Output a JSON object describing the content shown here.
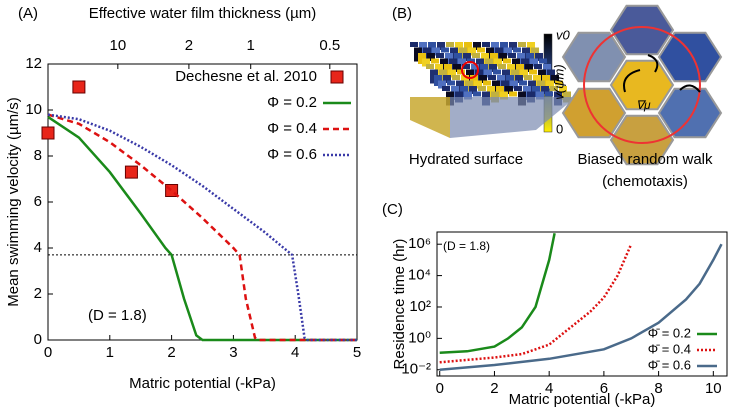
{
  "chart_data": [
    {
      "type": "line",
      "panel_label": "(A)",
      "x_label": "Matric potential (-kPa)",
      "y_label": "Mean swimming velocity (µm/s)",
      "x2_label": "Effective water film thickness (µm)",
      "xlim": [
        0,
        5
      ],
      "ylim": [
        0,
        12
      ],
      "xticks": [
        0,
        1,
        2,
        3,
        4,
        5
      ],
      "yticks": [
        0,
        2,
        4,
        6,
        8,
        10,
        12
      ],
      "x2ticks": [
        {
          "value": 1.13,
          "label": "10"
        },
        {
          "value": 2.28,
          "label": "2"
        },
        {
          "value": 3.28,
          "label": "1"
        },
        {
          "value": 4.56,
          "label": "0.5"
        }
      ],
      "annotation": "(D = 1.8)",
      "reference_line": 3.7,
      "legend": "top-right",
      "series": [
        {
          "name": "Dechesne et al. 2010",
          "type": "scatter",
          "color": "#e8251a",
          "x": [
            0,
            0.5,
            1.35,
            2.0
          ],
          "values": [
            9.0,
            11.0,
            7.3,
            6.5
          ]
        },
        {
          "name": "Φ = 0.2",
          "style": "solid",
          "color": "#1a8a1a",
          "x": [
            0,
            0.5,
            1,
            1.5,
            1.9,
            2.0,
            2.2,
            2.4,
            2.5,
            5
          ],
          "values": [
            9.7,
            8.8,
            7.3,
            5.5,
            4.0,
            3.7,
            1.8,
            0.2,
            0,
            0
          ]
        },
        {
          "name": "Φ = 0.4",
          "style": "dashed",
          "color": "#dd1111",
          "x": [
            0,
            0.5,
            1,
            1.5,
            2,
            2.5,
            3.0,
            3.1,
            3.2,
            3.35,
            3.4,
            5
          ],
          "values": [
            9.8,
            9.4,
            8.6,
            7.6,
            6.5,
            5.3,
            4.0,
            3.7,
            1.8,
            0.1,
            0,
            0
          ]
        },
        {
          "name": "Φ = 0.6",
          "style": "dotted",
          "color": "#3a3aa8",
          "x": [
            0,
            0.5,
            1,
            1.5,
            2,
            2.5,
            3,
            3.5,
            3.95,
            4.05,
            4.15,
            4.2,
            5
          ],
          "values": [
            9.8,
            9.6,
            9.1,
            8.4,
            7.6,
            6.7,
            5.7,
            4.7,
            3.7,
            2.0,
            0.1,
            0,
            0
          ]
        }
      ]
    },
    {
      "type": "line",
      "panel_label": "(C)",
      "log_y": true,
      "x_label": "Matric potential (-kPa)",
      "y_label": "Residence time (hr)",
      "xlim": [
        -0.1,
        10.5
      ],
      "ylim": [
        0.004,
        6000000
      ],
      "xticks": [
        0,
        2,
        4,
        6,
        8,
        10
      ],
      "yticks": [
        {
          "value": 0.01,
          "label": "10⁻²"
        },
        {
          "value": 1,
          "label": "10⁰"
        },
        {
          "value": 100,
          "label": "10²"
        },
        {
          "value": 10000,
          "label": "10⁴"
        },
        {
          "value": 1000000,
          "label": "10⁶"
        }
      ],
      "annotation": "(D = 1.8)",
      "legend": "bottom-right",
      "series": [
        {
          "name": "Φ̄ = 0.2",
          "style": "solid",
          "color": "#1a8a1a",
          "x": [
            0,
            1,
            2,
            2.5,
            3,
            3.5,
            4,
            4.2
          ],
          "values": [
            0.12,
            0.15,
            0.3,
            1,
            5,
            100,
            100000,
            5000000
          ]
        },
        {
          "name": "Φ̄ = 0.4",
          "style": "dotted",
          "color": "#dd1111",
          "x": [
            0,
            2,
            3,
            4,
            4.5,
            5,
            5.5,
            6,
            6.5,
            7
          ],
          "values": [
            0.03,
            0.06,
            0.1,
            0.4,
            2,
            10,
            50,
            400,
            10000,
            1000000
          ]
        },
        {
          "name": "Φ̄ = 0.6",
          "style": "solid",
          "color": "#4a6a8a",
          "x": [
            0,
            2,
            4,
            6,
            7,
            8,
            9,
            9.5,
            10,
            10.3
          ],
          "values": [
            0.01,
            0.02,
            0.05,
            0.2,
            1,
            10,
            300,
            3000,
            100000,
            1000000
          ]
        }
      ]
    }
  ],
  "illustration": {
    "panel_label": "(B)",
    "left_caption": "Hydrated surface",
    "colorbar_top": "v0",
    "colorbar_mid": "v(ψm)",
    "colorbar_bottom": "0",
    "right_caption": "Biased random walk",
    "right_caption2": "(chemotaxis)",
    "gradient": "∇μ"
  }
}
